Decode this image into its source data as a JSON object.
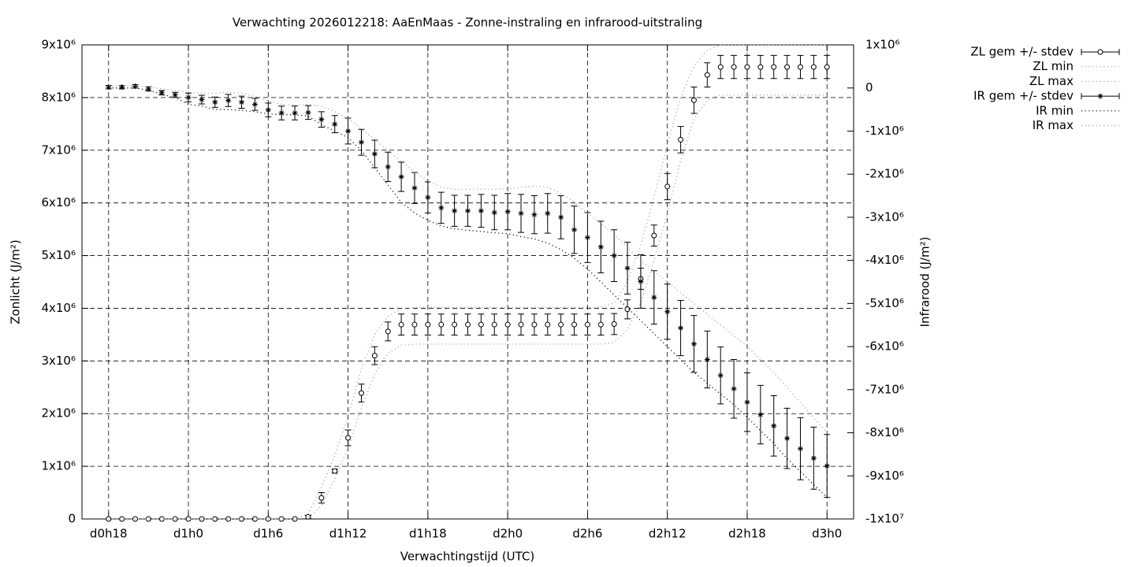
{
  "chart_data": {
    "type": "errorbar-line",
    "title": "Verwachting 2026012218: AaEnMaas - Zonne-instraling en infrarood-uitstraling",
    "xlabel": "Verwachtingstijd (UTC)",
    "ylabel": "Zonlicht (J/m²)",
    "y2label": "Infrarood (J/m²)",
    "grid": true,
    "legend": "outside-right",
    "xlim": [
      16,
      74
    ],
    "ylim": [
      0,
      9000000.0
    ],
    "y2lim": [
      -10000000.0,
      1000000.0
    ],
    "xticks": [
      {
        "value": 18,
        "label": "d0h18"
      },
      {
        "value": 24,
        "label": "d1h0"
      },
      {
        "value": 30,
        "label": "d1h6"
      },
      {
        "value": 36,
        "label": "d1h12"
      },
      {
        "value": 42,
        "label": "d1h18"
      },
      {
        "value": 48,
        "label": "d2h0"
      },
      {
        "value": 54,
        "label": "d2h6"
      },
      {
        "value": 60,
        "label": "d2h12"
      },
      {
        "value": 66,
        "label": "d2h18"
      },
      {
        "value": 72,
        "label": "d3h0"
      }
    ],
    "yticks": [
      0,
      {
        "value": 1000000.0,
        "label": "1x10⁶"
      },
      {
        "value": 2000000.0,
        "label": "2x10⁶"
      },
      {
        "value": 3000000.0,
        "label": "3x10⁶"
      },
      {
        "value": 4000000.0,
        "label": "4x10⁶"
      },
      {
        "value": 5000000.0,
        "label": "5x10⁶"
      },
      {
        "value": 6000000.0,
        "label": "6x10⁶"
      },
      {
        "value": 7000000.0,
        "label": "7x10⁶"
      },
      {
        "value": 8000000.0,
        "label": "8x10⁶"
      },
      {
        "value": 9000000.0,
        "label": "9x10⁶"
      }
    ],
    "y2ticks": [
      {
        "value": -10000000.0,
        "label": "-1x10⁷"
      },
      {
        "value": -9000000.0,
        "label": "-9x10⁶"
      },
      {
        "value": -8000000.0,
        "label": "-8x10⁶"
      },
      {
        "value": -7000000.0,
        "label": "-7x10⁶"
      },
      {
        "value": -6000000.0,
        "label": "-6x10⁶"
      },
      {
        "value": -5000000.0,
        "label": "-5x10⁶"
      },
      {
        "value": -4000000.0,
        "label": "-4x10⁶"
      },
      {
        "value": -3000000.0,
        "label": "-3x10⁶"
      },
      {
        "value": -2000000.0,
        "label": "-2x10⁶"
      },
      {
        "value": -1000000.0,
        "label": "-1x10⁶"
      },
      0,
      {
        "value": 1000000.0,
        "label": "1x10⁶"
      }
    ],
    "x": [
      18,
      19,
      20,
      21,
      22,
      23,
      24,
      25,
      26,
      27,
      28,
      29,
      30,
      31,
      32,
      33,
      34,
      35,
      36,
      37,
      38,
      39,
      40,
      41,
      42,
      43,
      44,
      45,
      46,
      47,
      48,
      49,
      50,
      51,
      52,
      53,
      54,
      55,
      56,
      57,
      58,
      59,
      60,
      61,
      62,
      63,
      64,
      65,
      66,
      67,
      68,
      69,
      70,
      71,
      72
    ],
    "series": [
      {
        "name": "ZL gem +/- stdev",
        "color": "#000000",
        "marker": "circle",
        "values": [
          0,
          0,
          0,
          0,
          0,
          0,
          0,
          0,
          0,
          0,
          0,
          0,
          0,
          0,
          0,
          40000.0,
          400000.0,
          910000.0,
          1540000.0,
          2390000.0,
          3100000.0,
          3560000.0,
          3690000.0,
          3690000.0,
          3690000.0,
          3690000.0,
          3690000.0,
          3690000.0,
          3690000.0,
          3690000.0,
          3690000.0,
          3690000.0,
          3690000.0,
          3690000.0,
          3690000.0,
          3690000.0,
          3690000.0,
          3690000.0,
          3700000.0,
          3980000.0,
          4560000.0,
          5380000.0,
          6310000.0,
          7200000.0,
          7950000.0,
          8430000.0,
          8580000.0,
          8580000.0,
          8580000.0,
          8580000.0,
          8580000.0,
          8580000.0,
          8580000.0,
          8580000.0,
          8580000.0
        ],
        "errors": [
          0,
          0,
          0,
          0,
          0,
          0,
          0,
          0,
          0,
          0,
          0,
          0,
          0,
          0,
          0,
          30000.0,
          100000.0,
          40000.0,
          150000.0,
          170000.0,
          170000.0,
          180000.0,
          200000.0,
          200000.0,
          200000.0,
          200000.0,
          200000.0,
          200000.0,
          200000.0,
          200000.0,
          200000.0,
          200000.0,
          200000.0,
          200000.0,
          200000.0,
          200000.0,
          200000.0,
          200000.0,
          200000.0,
          180000.0,
          200000.0,
          200000.0,
          250000.0,
          250000.0,
          250000.0,
          230000.0,
          220000.0,
          220000.0,
          220000.0,
          220000.0,
          220000.0,
          220000.0,
          220000.0,
          220000.0,
          220000.0
        ]
      },
      {
        "name": "ZL min",
        "color": "#a0a0a0",
        "marker": "dotted",
        "values": [
          0,
          0,
          0,
          0,
          0,
          0,
          0,
          0,
          0,
          0,
          0,
          0,
          0,
          0,
          0,
          20000.0,
          250000.0,
          750000.0,
          1350000.0,
          2100000.0,
          2750000.0,
          3150000.0,
          3300000.0,
          3320000.0,
          3320000.0,
          3320000.0,
          3320000.0,
          3320000.0,
          3320000.0,
          3320000.0,
          3320000.0,
          3320000.0,
          3320000.0,
          3320000.0,
          3320000.0,
          3320000.0,
          3320000.0,
          3320000.0,
          3350000.0,
          3600000.0,
          4100000.0,
          4900000.0,
          5800000.0,
          6800000.0,
          7600000.0,
          7950000.0,
          8050000.0,
          8050000.0,
          8050000.0,
          8050000.0,
          8050000.0,
          8050000.0,
          8050000.0,
          8050000.0,
          8050000.0
        ]
      },
      {
        "name": "ZL max",
        "color": "#a0a0a0",
        "marker": "dotted",
        "values": [
          0,
          0,
          0,
          0,
          0,
          0,
          0,
          0,
          0,
          0,
          0,
          0,
          0,
          0,
          0,
          100000.0,
          600000.0,
          1200000.0,
          1950000.0,
          2850000.0,
          3500000.0,
          3850000.0,
          3980000.0,
          4020000.0,
          4020000.0,
          4020000.0,
          4020000.0,
          4020000.0,
          4020000.0,
          4020000.0,
          4020000.0,
          4020000.0,
          4020000.0,
          4020000.0,
          4020000.0,
          4020000.0,
          4020000.0,
          4020000.0,
          4100000.0,
          4500000.0,
          5200000.0,
          6100000.0,
          7100000.0,
          8000000.0,
          8600000.0,
          8900000.0,
          9000000.0,
          9000000.0,
          9000000.0,
          9000000.0,
          9000000.0,
          9000000.0,
          9000000.0,
          9000000.0,
          9000000.0
        ]
      },
      {
        "name": "IR gem +/- stdev",
        "color": "#000000",
        "marker": "star",
        "axis": "y2",
        "values": [
          20000.0,
          20000.0,
          40000.0,
          -20000.0,
          -110000.0,
          -160000.0,
          -220000.0,
          -270000.0,
          -330000.0,
          -290000.0,
          -330000.0,
          -380000.0,
          -510000.0,
          -580000.0,
          -580000.0,
          -570000.0,
          -730000.0,
          -840000.0,
          -1000000.0,
          -1260000.0,
          -1530000.0,
          -1830000.0,
          -2060000.0,
          -2320000.0,
          -2540000.0,
          -2780000.0,
          -2850000.0,
          -2850000.0,
          -2850000.0,
          -2890000.0,
          -2870000.0,
          -2910000.0,
          -2940000.0,
          -2910000.0,
          -3000000.0,
          -3290000.0,
          -3470000.0,
          -3690000.0,
          -3890000.0,
          -4180000.0,
          -4490000.0,
          -4860000.0,
          -5190000.0,
          -5570000.0,
          -5940000.0,
          -6300000.0,
          -6670000.0,
          -6980000.0,
          -7290000.0,
          -7580000.0,
          -7840000.0,
          -8130000.0,
          -8370000.0,
          -8590000.0,
          -8770000.0
        ],
        "errors": [
          40000.0,
          40000.0,
          40000.0,
          50000.0,
          50000.0,
          60000.0,
          100000.0,
          100000.0,
          120000.0,
          140000.0,
          140000.0,
          140000.0,
          160000.0,
          160000.0,
          160000.0,
          160000.0,
          180000.0,
          200000.0,
          300000.0,
          300000.0,
          320000.0,
          340000.0,
          340000.0,
          360000.0,
          360000.0,
          360000.0,
          360000.0,
          360000.0,
          380000.0,
          400000.0,
          420000.0,
          440000.0,
          440000.0,
          460000.0,
          500000.0,
          550000.0,
          580000.0,
          600000.0,
          600000.0,
          600000.0,
          620000.0,
          620000.0,
          640000.0,
          640000.0,
          660000.0,
          660000.0,
          660000.0,
          680000.0,
          680000.0,
          680000.0,
          700000.0,
          700000.0,
          720000.0,
          720000.0,
          730000.0
        ]
      },
      {
        "name": "IR min",
        "color": "#000000",
        "marker": "dotted",
        "axis": "y2",
        "values": [
          0,
          0,
          0,
          -50000.0,
          -150000.0,
          -220000.0,
          -380000.0,
          -420000.0,
          -500000.0,
          -500000.0,
          -520000.0,
          -550000.0,
          -600000.0,
          -620000.0,
          -620000.0,
          -650000.0,
          -850000.0,
          -1000000.0,
          -1150000.0,
          -1450000.0,
          -1850000.0,
          -2250000.0,
          -2650000.0,
          -2900000.0,
          -3070000.0,
          -3200000.0,
          -3270000.0,
          -3300000.0,
          -3330000.0,
          -3360000.0,
          -3380000.0,
          -3450000.0,
          -3500000.0,
          -3600000.0,
          -3750000.0,
          -3950000.0,
          -4200000.0,
          -4500000.0,
          -4800000.0,
          -5100000.0,
          -5400000.0,
          -5700000.0,
          -6000000.0,
          -6300000.0,
          -6600000.0,
          -6850000.0,
          -7100000.0,
          -7350000.0,
          -7640000.0,
          -7950000.0,
          -8250000.0,
          -8600000.0,
          -8900000.0,
          -9200000.0,
          -9500000.0
        ]
      },
      {
        "name": "IR max",
        "color": "#a0a0a0",
        "marker": "dotted",
        "axis": "y2",
        "values": [
          50000.0,
          50000.0,
          50000.0,
          30000.0,
          -20000.0,
          -60000.0,
          -100000.0,
          -120000.0,
          -120000.0,
          -100000.0,
          -120000.0,
          -200000.0,
          -300000.0,
          -380000.0,
          -400000.0,
          -380000.0,
          -420000.0,
          -550000.0,
          -700000.0,
          -950000.0,
          -1200000.0,
          -1450000.0,
          -1700000.0,
          -1950000.0,
          -2150000.0,
          -2300000.0,
          -2350000.0,
          -2350000.0,
          -2350000.0,
          -2350000.0,
          -2340000.0,
          -2300000.0,
          -2280000.0,
          -2300000.0,
          -2450000.0,
          -2650000.0,
          -2900000.0,
          -3150000.0,
          -3400000.0,
          -3700000.0,
          -4000000.0,
          -4250000.0,
          -4500000.0,
          -4750000.0,
          -5000000.0,
          -5250000.0,
          -5500000.0,
          -5750000.0,
          -6000000.0,
          -6300000.0,
          -6600000.0,
          -6950000.0,
          -7300000.0,
          -7650000.0,
          -8000000.0
        ]
      }
    ]
  }
}
